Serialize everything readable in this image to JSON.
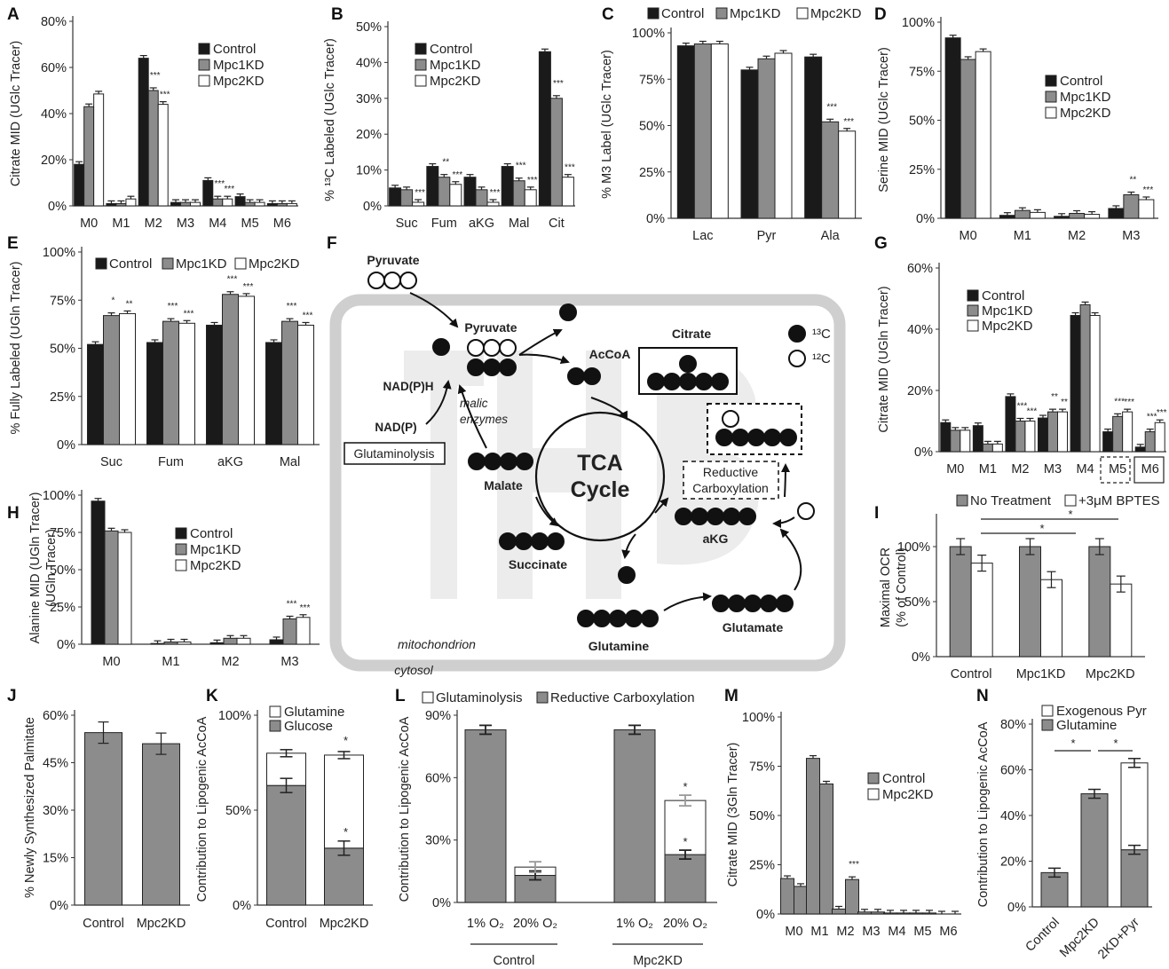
{
  "colors": {
    "control": "#1a1a1a",
    "mpc1kd": "#8c8c8c",
    "mpc2kd": "#ffffff",
    "gray": "#8c8c8c",
    "light": "#d9d9d9"
  },
  "panels": [
    {
      "id": "A",
      "letter": "A",
      "ylabel": "Citrate MID (UGlc Tracer)",
      "yticks": [
        "0%",
        "20%",
        "40%",
        "60%",
        "80%"
      ],
      "ymax": 80,
      "categories": [
        "M0",
        "M1",
        "M2",
        "M3",
        "M4",
        "M5",
        "M6"
      ],
      "legend": [
        "Control",
        "Mpc1KD",
        "Mpc2KD"
      ],
      "series": [
        {
          "name": "Control",
          "values": [
            18,
            1,
            64,
            1.5,
            11,
            4,
            1
          ]
        },
        {
          "name": "Mpc1KD",
          "values": [
            43,
            1,
            50,
            1.5,
            3,
            1.5,
            1
          ]
        },
        {
          "name": "Mpc2KD",
          "values": [
            48.5,
            3,
            44,
            1.5,
            3,
            1.5,
            1
          ]
        }
      ],
      "stars": [
        {
          "cat": 2,
          "ser": 1,
          "text": "***"
        },
        {
          "cat": 2,
          "ser": 2,
          "text": "***"
        },
        {
          "cat": 4,
          "ser": 1,
          "text": "***"
        },
        {
          "cat": 4,
          "ser": 2,
          "text": "***"
        }
      ]
    },
    {
      "id": "B",
      "letter": "B",
      "ylabel": "% ¹³C Labeled (UGlc Tracer)",
      "yticks": [
        "0%",
        "10%",
        "20%",
        "30%",
        "40%",
        "50%"
      ],
      "ymax": 50,
      "categories": [
        "Suc",
        "Fum",
        "aKG",
        "Mal",
        "Cit"
      ],
      "legend": [
        "Control",
        "Mpc1KD",
        "Mpc2KD"
      ],
      "series": [
        {
          "name": "Control",
          "values": [
            5,
            11,
            8,
            11,
            43
          ]
        },
        {
          "name": "Mpc1KD",
          "values": [
            4.5,
            8,
            4.5,
            7,
            30
          ]
        },
        {
          "name": "Mpc2KD",
          "values": [
            1,
            6,
            1,
            4.5,
            8
          ]
        }
      ],
      "stars": [
        {
          "cat": 0,
          "ser": 2,
          "text": "***"
        },
        {
          "cat": 1,
          "ser": 1,
          "text": "**"
        },
        {
          "cat": 1,
          "ser": 2,
          "text": "***"
        },
        {
          "cat": 2,
          "ser": 2,
          "text": "***"
        },
        {
          "cat": 3,
          "ser": 1,
          "text": "***"
        },
        {
          "cat": 3,
          "ser": 2,
          "text": "***"
        },
        {
          "cat": 4,
          "ser": 1,
          "text": "***"
        },
        {
          "cat": 4,
          "ser": 2,
          "text": "***"
        }
      ]
    },
    {
      "id": "C",
      "letter": "C",
      "ylabel": "% M3 Label (UGlc Tracer)",
      "yticks": [
        "0%",
        "25%",
        "50%",
        "75%",
        "100%"
      ],
      "ymax": 100,
      "categories": [
        "Lac",
        "Pyr",
        "Ala"
      ],
      "legend": [
        "Control",
        "Mpc1KD",
        "Mpc2KD"
      ],
      "series": [
        {
          "name": "Control",
          "values": [
            93,
            80,
            87
          ]
        },
        {
          "name": "Mpc1KD",
          "values": [
            94,
            86,
            52
          ]
        },
        {
          "name": "Mpc2KD",
          "values": [
            94,
            89,
            47
          ]
        }
      ],
      "stars": [
        {
          "cat": 2,
          "ser": 1,
          "text": "***"
        },
        {
          "cat": 2,
          "ser": 2,
          "text": "***"
        }
      ]
    },
    {
      "id": "D",
      "letter": "D",
      "ylabel": "Serine MID (UGlc Tracer)",
      "yticks": [
        "0%",
        "25%",
        "50%",
        "75%",
        "100%"
      ],
      "ymax": 100,
      "categories": [
        "M0",
        "M1",
        "M2",
        "M3"
      ],
      "legend": [
        "Control",
        "Mpc1KD",
        "Mpc2KD"
      ],
      "series": [
        {
          "name": "Control",
          "values": [
            92,
            1.5,
            1,
            5
          ]
        },
        {
          "name": "Mpc1KD",
          "values": [
            81,
            4,
            2.5,
            12
          ]
        },
        {
          "name": "Mpc2KD",
          "values": [
            85,
            3,
            2,
            9.5
          ]
        }
      ],
      "stars": [
        {
          "cat": 3,
          "ser": 1,
          "text": "**"
        },
        {
          "cat": 3,
          "ser": 2,
          "text": "***"
        }
      ]
    },
    {
      "id": "E",
      "letter": "E",
      "ylabel": "% Fully Labeled (UGln Tracer)",
      "yticks": [
        "0%",
        "25%",
        "50%",
        "75%",
        "100%"
      ],
      "ymax": 100,
      "categories": [
        "Suc",
        "Fum",
        "aKG",
        "Mal"
      ],
      "legend": [
        "Control",
        "Mpc1KD",
        "Mpc2KD"
      ],
      "series": [
        {
          "name": "Control",
          "values": [
            52,
            53,
            62,
            53
          ]
        },
        {
          "name": "Mpc1KD",
          "values": [
            67,
            64,
            78,
            64
          ]
        },
        {
          "name": "Mpc2KD",
          "values": [
            68,
            63,
            77,
            62
          ]
        }
      ],
      "stars": [
        {
          "cat": 0,
          "ser": 1,
          "text": "*"
        },
        {
          "cat": 0,
          "ser": 2,
          "text": "**"
        },
        {
          "cat": 1,
          "ser": 1,
          "text": "***"
        },
        {
          "cat": 1,
          "ser": 2,
          "text": "***"
        },
        {
          "cat": 2,
          "ser": 1,
          "text": "***"
        },
        {
          "cat": 2,
          "ser": 2,
          "text": "***"
        },
        {
          "cat": 3,
          "ser": 1,
          "text": "***"
        },
        {
          "cat": 3,
          "ser": 2,
          "text": "***"
        }
      ]
    },
    {
      "id": "G",
      "letter": "G",
      "ylabel": "Citrate MID (UGln Tracer)",
      "yticks": [
        "0%",
        "20%",
        "40%",
        "60%"
      ],
      "ymax": 60,
      "categories": [
        "M0",
        "M1",
        "M2",
        "M3",
        "M4",
        "M5",
        "M6"
      ],
      "legend": [
        "Control",
        "Mpc1KD",
        "Mpc2KD"
      ],
      "series": [
        {
          "name": "Control",
          "values": [
            9.5,
            8.5,
            18,
            11,
            44.5,
            6.5,
            1.5
          ]
        },
        {
          "name": "Mpc1KD",
          "values": [
            7,
            2.5,
            10,
            13,
            48,
            11.5,
            6.5
          ]
        },
        {
          "name": "Mpc2KD",
          "values": [
            7,
            2.5,
            10,
            13,
            44.5,
            13,
            9.5
          ]
        }
      ],
      "stars": [
        {
          "cat": 2,
          "ser": 1,
          "text": "***"
        },
        {
          "cat": 2,
          "ser": 2,
          "text": "***"
        },
        {
          "cat": 3,
          "ser": 1,
          "text": "**"
        },
        {
          "cat": 3,
          "ser": 2,
          "text": "**"
        },
        {
          "cat": 5,
          "ser": 1,
          "text": "***"
        },
        {
          "cat": 5,
          "ser": 2,
          "text": "***"
        },
        {
          "cat": 6,
          "ser": 1,
          "text": "***"
        },
        {
          "cat": 6,
          "ser": 2,
          "text": "***"
        }
      ]
    },
    {
      "id": "H",
      "letter": "H",
      "ylabel": "Alanine MID (UGln Tracer)",
      "yticks": [
        "0%",
        "25%",
        "50%",
        "75%",
        "100%"
      ],
      "ymax": 100,
      "categories": [
        "M0",
        "M1",
        "M2",
        "M3"
      ],
      "legend": [
        "Control",
        "Mpc1KD",
        "Mpc2KD"
      ],
      "series": [
        {
          "name": "Control",
          "values": [
            96,
            0.5,
            1,
            3
          ]
        },
        {
          "name": "Mpc1KD",
          "values": [
            76,
            1.5,
            4,
            17
          ]
        },
        {
          "name": "Mpc2KD",
          "values": [
            75,
            1.5,
            4,
            18
          ]
        }
      ],
      "stars": [
        {
          "cat": 3,
          "ser": 1,
          "text": "***"
        },
        {
          "cat": 3,
          "ser": 2,
          "text": "***"
        }
      ]
    },
    {
      "id": "I",
      "letter": "I",
      "ylabel": "Maximal OCR (% of Control)",
      "yticks": [
        "0%",
        "50%",
        "100%"
      ],
      "ymax": 125,
      "categories": [
        "Control",
        "Mpc1KD",
        "Mpc2KD"
      ],
      "legend": [
        "No Treatment",
        "+3μM BPTES"
      ],
      "series": [
        {
          "name": "No Treatment",
          "values": [
            100,
            100,
            100
          ]
        },
        {
          "name": "+3μM BPTES",
          "values": [
            85,
            70,
            66
          ]
        }
      ],
      "bracket_star": "*"
    },
    {
      "id": "J",
      "letter": "J",
      "ylabel": "% Newly Synthesized Palmitate",
      "yticks": [
        "0%",
        "15%",
        "30%",
        "45%",
        "60%"
      ],
      "ymax": 60,
      "categories": [
        "Control",
        "Mpc2KD"
      ],
      "series": [
        {
          "name": "",
          "values": [
            54.5,
            51
          ]
        }
      ]
    },
    {
      "id": "K",
      "letter": "K",
      "ylabel": "Contribution to Lipogenic AcCoA",
      "yticks": [
        "0%",
        "50%",
        "100%"
      ],
      "ymax": 100,
      "categories": [
        "Control",
        "Mpc2KD"
      ],
      "legend": [
        "Glutamine",
        "Glucose"
      ],
      "stack": {
        "Glucose": [
          63,
          30
        ],
        "Glutamine": [
          17,
          49
        ]
      },
      "stars_text": "*"
    },
    {
      "id": "L",
      "letter": "L",
      "ylabel": "Contribution to Lipogenic AcCoA",
      "yticks": [
        "0%",
        "30%",
        "60%",
        "90%"
      ],
      "ymax": 90,
      "categories": [
        "1% O₂",
        "20% O₂",
        "1% O₂",
        "20% O₂"
      ],
      "groups": [
        "Control",
        "Mpc2KD"
      ],
      "legend": [
        "Glutaminolysis",
        "Reductive Carboxylation"
      ],
      "stack": {
        "Reductive Carboxylation": [
          83,
          13,
          83,
          23
        ],
        "Glutaminolysis": [
          0,
          4,
          0,
          26
        ]
      },
      "stars_text": "*"
    },
    {
      "id": "M",
      "letter": "M",
      "ylabel": "Citrate MID (3Gln Tracer)",
      "yticks": [
        "0%",
        "25%",
        "50%",
        "75%",
        "100%"
      ],
      "ymax": 100,
      "categories": [
        "M0",
        "M1",
        "M2",
        "M3",
        "M4",
        "M5",
        "M6"
      ],
      "legend": [
        "Control",
        "Mpc2KD"
      ],
      "series": [
        {
          "name": "Control",
          "values": [
            18,
            79,
            2.5,
            1,
            0.5,
            0.5,
            0
          ]
        },
        {
          "name": "Mpc2KD",
          "values": [
            14,
            66,
            17.5,
            1,
            0.5,
            0.5,
            0
          ]
        }
      ],
      "stars": [
        {
          "cat": 2,
          "ser": 1,
          "text": "***"
        }
      ]
    },
    {
      "id": "N",
      "letter": "N",
      "ylabel": "Contribution to Lipogenic AcCoA",
      "yticks": [
        "0%",
        "20%",
        "40%",
        "60%",
        "80%"
      ],
      "ymax": 80,
      "categories": [
        "Control",
        "Mpc2KD",
        "2KD+Pyr"
      ],
      "legend": [
        "Exogenous Pyr",
        "Glutamine"
      ],
      "stack": {
        "Glutamine": [
          15,
          49.5,
          25
        ],
        "Exogenous Pyr": [
          0,
          0,
          38
        ]
      },
      "stars_text": "*"
    }
  ],
  "diagram": {
    "letter": "F",
    "labels": {
      "pyruvate_top": "Pyruvate",
      "pyruvate": "Pyruvate",
      "accoa": "AcCoA",
      "citrate": "Citrate",
      "nadph": "NAD(P)H",
      "nadp": "NAD(P)",
      "malic": "malic",
      "enzymes": "enzymes",
      "glutaminolysis": "Glutaminolysis",
      "malate": "Malate",
      "tca1": "TCA",
      "tca2": "Cycle",
      "reductive1": "Reductive",
      "reductive2": "Carboxylation",
      "akg": "aKG",
      "succinate": "Succinate",
      "glutamine": "Glutamine",
      "glutamate": "Glutamate",
      "mito": "mitochondrion",
      "cyto": "cytosol",
      "c13": "¹³C",
      "c12": "¹²C"
    }
  }
}
